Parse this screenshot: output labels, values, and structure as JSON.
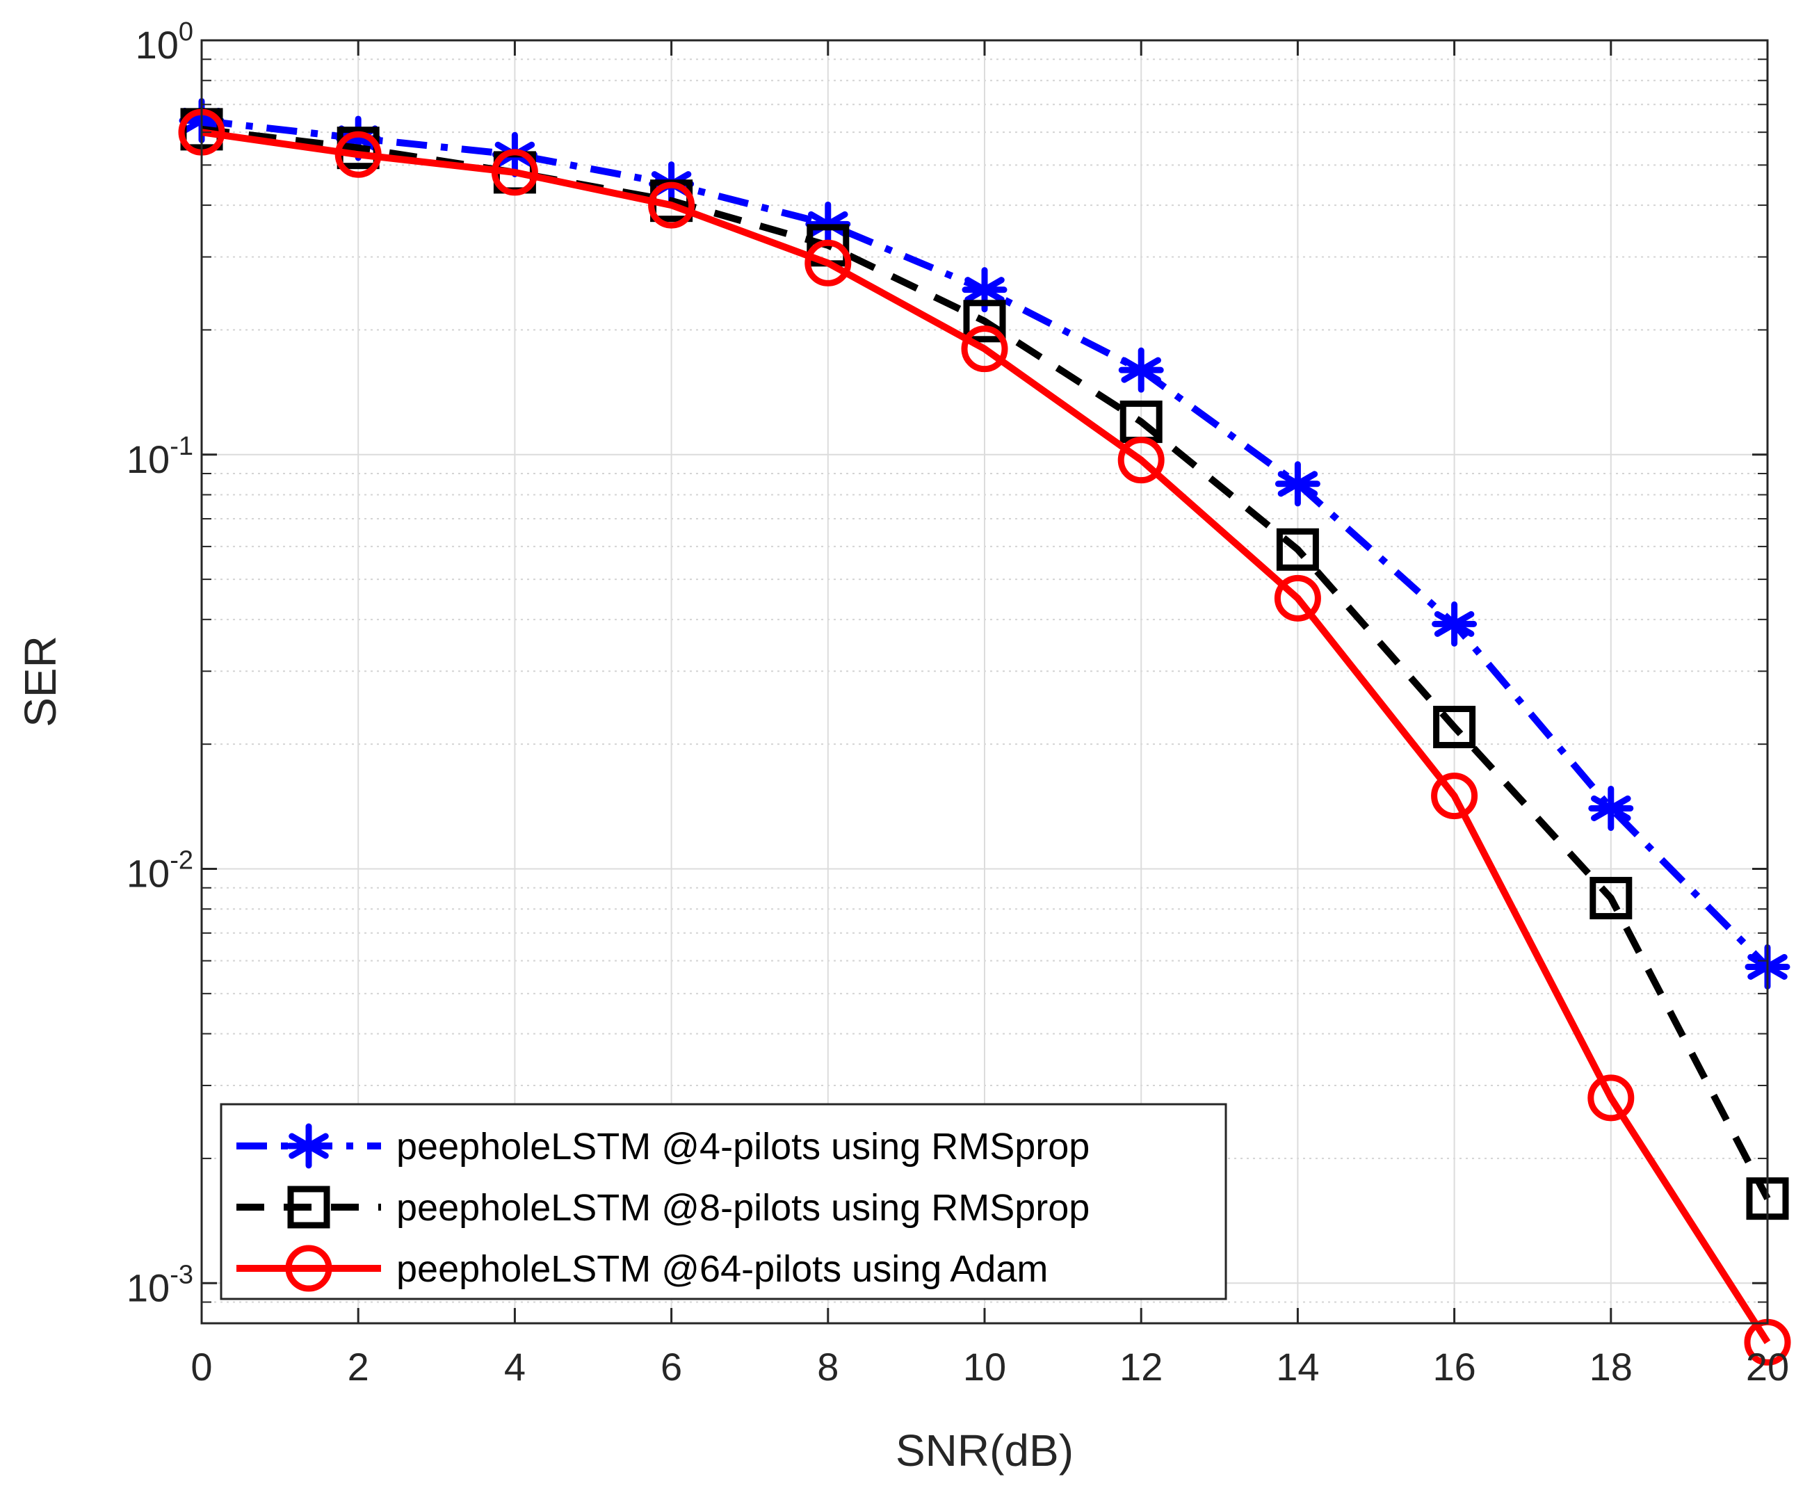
{
  "chart_data": {
    "type": "line",
    "xlabel": "SNR(dB)",
    "ylabel": "SER",
    "xlim": [
      0,
      20
    ],
    "ylim": [
      0.0008,
      1
    ],
    "yscale": "log",
    "grid": true,
    "x_ticks": [
      0,
      2,
      4,
      6,
      8,
      10,
      12,
      14,
      16,
      18,
      20
    ],
    "x_tick_labels": [
      "0",
      "2",
      "4",
      "6",
      "8",
      "10",
      "12",
      "14",
      "16",
      "18",
      "20"
    ],
    "y_ticks": [
      {
        "value": 1,
        "base": "10",
        "exp": "0"
      },
      {
        "value": 0.1,
        "base": "10",
        "exp": "-1"
      },
      {
        "value": 0.01,
        "base": "10",
        "exp": "-2"
      },
      {
        "value": 0.001,
        "base": "10",
        "exp": "-3"
      }
    ],
    "legend_position": "bottom-left",
    "x": [
      0,
      2,
      4,
      6,
      8,
      10,
      12,
      14,
      16,
      18,
      20
    ],
    "series": [
      {
        "name": "peepholeLSTM @4-pilots using RMSprop",
        "color": "#0000ff",
        "line": "dash-dot",
        "marker": "asterisk",
        "values": [
          0.64,
          0.58,
          0.53,
          0.45,
          0.36,
          0.25,
          0.16,
          0.085,
          0.039,
          0.014,
          0.0058
        ]
      },
      {
        "name": "peepholeLSTM @8-pilots using RMSprop",
        "color": "#000000",
        "line": "dashed",
        "marker": "square",
        "values": [
          0.61,
          0.55,
          0.48,
          0.41,
          0.32,
          0.21,
          0.12,
          0.059,
          0.022,
          0.0085,
          0.0016
        ]
      },
      {
        "name": "peepholeLSTM @64-pilots using Adam",
        "color": "#ff0000",
        "line": "solid",
        "marker": "circle",
        "values": [
          0.6,
          0.53,
          0.48,
          0.4,
          0.29,
          0.18,
          0.097,
          0.045,
          0.015,
          0.0028,
          0.00072
        ]
      }
    ]
  }
}
